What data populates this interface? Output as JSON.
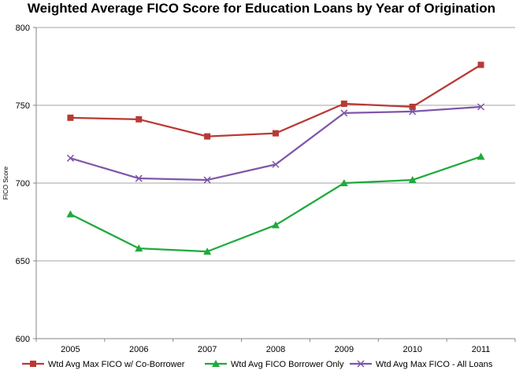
{
  "chart_data": {
    "type": "line",
    "title": "Weighted Average FICO Score for Education Loans by Year of Origination",
    "xlabel": "",
    "ylabel": "FICO Score",
    "categories": [
      "2005",
      "2006",
      "2007",
      "2008",
      "2009",
      "2010",
      "2011"
    ],
    "ylim": [
      600,
      800
    ],
    "yticks": [
      "600",
      "650",
      "700",
      "750",
      "800"
    ],
    "grid": true,
    "legend_position": "bottom",
    "series": [
      {
        "name": "Wtd Avg Max FICO w/ Co-Borrower",
        "color": "#b83a34",
        "marker": "square",
        "values": [
          742,
          741,
          730,
          732,
          751,
          749,
          776
        ]
      },
      {
        "name": "Wtd Avg FICO Borrower Only",
        "color": "#1faa3c",
        "marker": "triangle",
        "values": [
          680,
          658,
          656,
          673,
          700,
          702,
          717
        ]
      },
      {
        "name": "Wtd Avg Max FICO - All Loans",
        "color": "#7e57a8",
        "marker": "x",
        "values": [
          716,
          703,
          702,
          712,
          745,
          746,
          749
        ]
      }
    ]
  }
}
